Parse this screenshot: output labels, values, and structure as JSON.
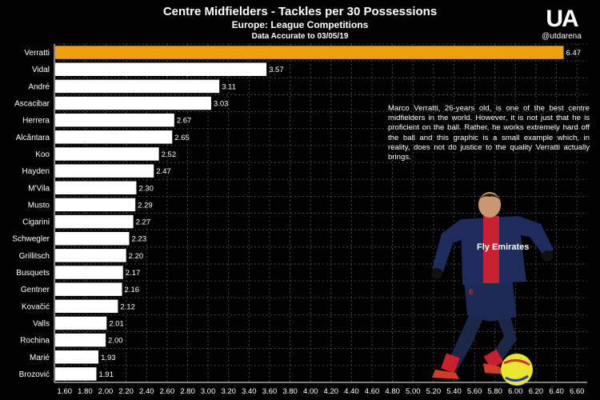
{
  "header": {
    "title": "Centre Midfielders - Tackles per 30 Possessions",
    "subtitle": "Europe: League Competitions",
    "note": "Data Accurate to 03/05/19"
  },
  "brand": {
    "mark": "UA",
    "handle": "@utdarena"
  },
  "annotation": "Marco Verratti, 26-years old, is one of the best centre midfielders in the world. However, it is not just that he is proficient on the ball. Rather, he works extremely hard off the ball and this graphic is a small example which, in reality, does not do justice to the quality Verratti actually brings.",
  "player_image": {
    "shirt_text": "Fly Emirates"
  },
  "chart_data": {
    "type": "bar",
    "orientation": "horizontal",
    "title": "Centre Midfielders - Tackles per 30 Possessions",
    "subtitle": "Europe: League Competitions",
    "categories": [
      "Verratti",
      "Vidal",
      "André",
      "Ascacibar",
      "Herrera",
      "Alcântara",
      "Koo",
      "Hayden",
      "M'Vila",
      "Musto",
      "Cigarini",
      "Schwegler",
      "Grillitsch",
      "Busquets",
      "Gentner",
      "Kovačić",
      "Valls",
      "Rochina",
      "Marié",
      "Brozović"
    ],
    "values": [
      6.47,
      3.57,
      3.11,
      3.03,
      2.67,
      2.65,
      2.52,
      2.47,
      2.3,
      2.29,
      2.27,
      2.23,
      2.2,
      2.17,
      2.16,
      2.12,
      2.01,
      2.0,
      1.93,
      1.91
    ],
    "value_labels": [
      "6.47",
      "3.57",
      "3.11",
      "3.03",
      "2.67",
      "2.65",
      "2.52",
      "2.47",
      "2.30",
      "2.29",
      "2.27",
      "2.23",
      "2.20",
      "2.17",
      "2.16",
      "2.12",
      "2.01",
      "2.00",
      "1.93",
      "1.91"
    ],
    "xlim": [
      1.5,
      6.7
    ],
    "xticks": [
      "1.60",
      "1.80",
      "2.00",
      "2.20",
      "2.40",
      "2.60",
      "2.80",
      "3.00",
      "3.20",
      "3.40",
      "3.60",
      "3.80",
      "4.00",
      "4.20",
      "4.40",
      "4.60",
      "4.80",
      "5.00",
      "5.20",
      "5.40",
      "5.60",
      "5.80",
      "6.00",
      "6.20",
      "6.40",
      "6.60"
    ],
    "grid": true,
    "grid_style": "dashed",
    "colors": {
      "highlight": "#f0a10a",
      "bar": "#ffffff",
      "grid": "#555555",
      "background": "#000000"
    }
  }
}
